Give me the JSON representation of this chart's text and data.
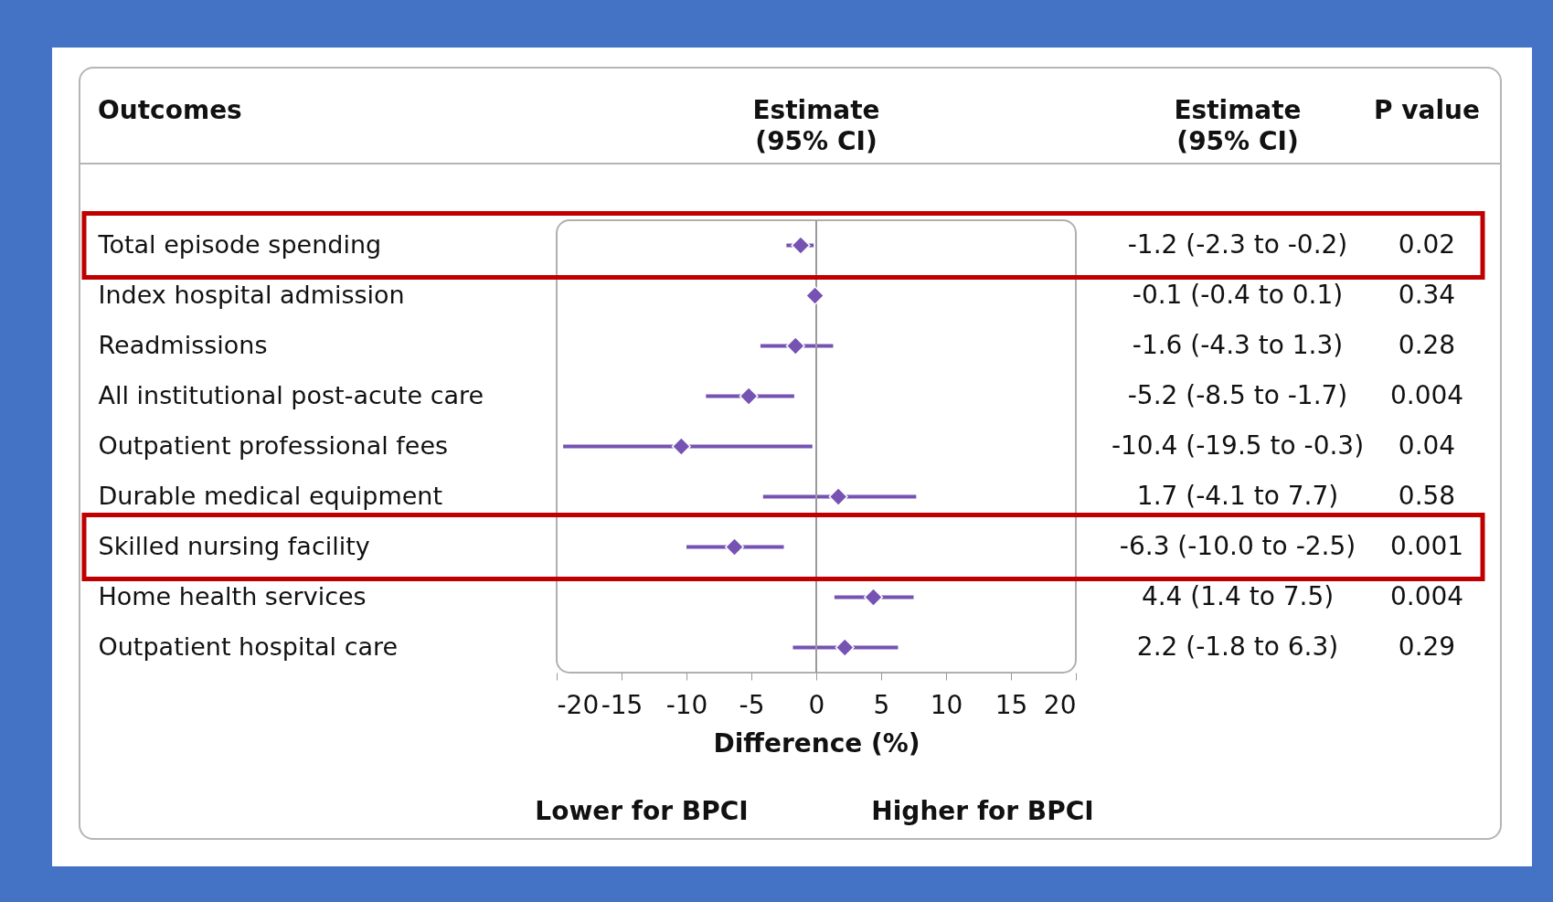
{
  "chart_data": {
    "type": "scatter",
    "orientation": "horizontal",
    "title": "Estimate (95% CI)",
    "ylabel": "Outcomes",
    "xlabel": "Difference (%)",
    "categories": [
      "Total episode spending",
      "Index hospital admission",
      "Readmissions",
      "All institutional post-acute care",
      "Outpatient professional fees",
      "Durable medical equipment",
      "Skilled nursing facility",
      "Home health services",
      "Outpatient hospital care"
    ],
    "values": [
      -1.2,
      -0.1,
      -1.6,
      -5.2,
      -10.4,
      1.7,
      -6.3,
      4.4,
      2.2
    ],
    "errors": [
      [
        -2.3,
        -0.2
      ],
      [
        -0.4,
        0.1
      ],
      [
        -4.3,
        1.3
      ],
      [
        -8.5,
        -1.7
      ],
      [
        -19.5,
        -0.3
      ],
      [
        -4.1,
        7.7
      ],
      [
        -10.0,
        -2.5
      ],
      [
        1.4,
        7.5
      ],
      [
        -1.8,
        6.3
      ]
    ],
    "color": "#7653b2",
    "marker": "diamond",
    "xlim": [
      -20,
      20
    ],
    "xticks": [
      -20,
      -15,
      -10,
      -5,
      0,
      5,
      10,
      15,
      20
    ],
    "ref_lines": [
      {
        "axis": "x",
        "value": 0
      }
    ],
    "annotations": [
      "Estimate (95% CI)",
      "P value",
      "Lower for BPCI",
      "Higher for BPCI",
      "-1.2 (-2.3 to -0.2)",
      "-0.1 (-0.4 to 0.1)",
      "-1.6 (-4.3 to 1.3)",
      "-5.2 (-8.5 to -1.7)",
      "-10.4 (-19.5 to -0.3)",
      "1.7 (-4.1 to 7.7)",
      "-6.3 (-10.0 to -2.5)",
      "4.4 (1.4 to 7.5)",
      "2.2 (-1.8 to 6.3)",
      "0.02",
      "0.34",
      "0.28",
      "0.004",
      "0.04",
      "0.58",
      "0.001",
      "0.004",
      "0.29"
    ]
  }
}
